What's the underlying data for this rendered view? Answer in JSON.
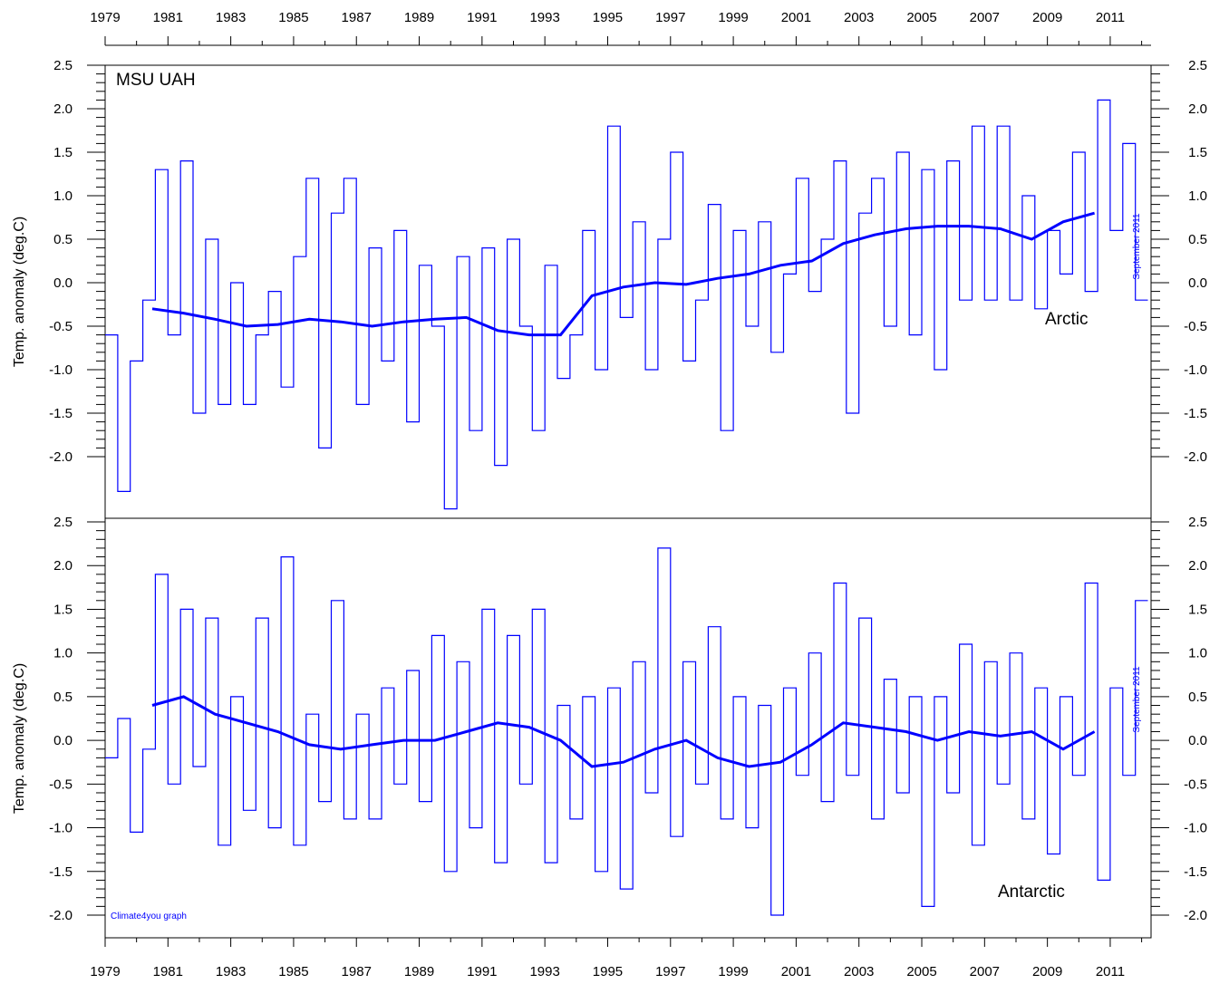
{
  "chart_data": [
    {
      "type": "line",
      "panel": "top",
      "title": "MSU UAH",
      "region_label": "Arctic",
      "side_note": "September 2011",
      "ylabel": "Temp. anomaly (deg.C)",
      "xlim": [
        1979,
        2012.3
      ],
      "ylim": [
        -2.1,
        2.6
      ],
      "yticks": [
        "2.5",
        "2.0",
        "1.5",
        "1.0",
        "0.5",
        "0.0",
        "-0.5",
        "-1.0",
        "-1.5",
        "-2.0"
      ],
      "xticks": [
        "1979",
        "1981",
        "1983",
        "1985",
        "1987",
        "1989",
        "1991",
        "1993",
        "1995",
        "1997",
        "1999",
        "2001",
        "2003",
        "2005",
        "2007",
        "2009",
        "2011"
      ],
      "series": [
        {
          "style": "monthly-step",
          "x": [
            1979.0,
            1979.4,
            1979.8,
            1980.2,
            1980.6,
            1981.0,
            1981.4,
            1981.8,
            1982.2,
            1982.6,
            1983.0,
            1983.4,
            1983.8,
            1984.2,
            1984.6,
            1985.0,
            1985.4,
            1985.8,
            1986.2,
            1986.6,
            1987.0,
            1987.4,
            1987.8,
            1988.2,
            1988.6,
            1989.0,
            1989.4,
            1989.8,
            1990.2,
            1990.6,
            1991.0,
            1991.4,
            1991.8,
            1992.2,
            1992.6,
            1993.0,
            1993.4,
            1993.8,
            1994.2,
            1994.6,
            1995.0,
            1995.4,
            1995.8,
            1996.2,
            1996.6,
            1997.0,
            1997.4,
            1997.8,
            1998.2,
            1998.6,
            1999.0,
            1999.4,
            1999.8,
            2000.2,
            2000.6,
            2001.0,
            2001.4,
            2001.8,
            2002.2,
            2002.6,
            2003.0,
            2003.4,
            2003.8,
            2004.2,
            2004.6,
            2005.0,
            2005.4,
            2005.8,
            2006.2,
            2006.6,
            2007.0,
            2007.4,
            2007.8,
            2008.2,
            2008.6,
            2009.0,
            2009.4,
            2009.8,
            2010.2,
            2010.6,
            2011.0,
            2011.4,
            2011.8
          ],
          "y": [
            -0.6,
            -2.4,
            -0.9,
            -0.2,
            1.3,
            -0.6,
            1.4,
            -1.5,
            0.5,
            -1.4,
            0.0,
            -1.4,
            -0.6,
            -0.1,
            -1.2,
            0.3,
            1.2,
            -1.9,
            0.8,
            1.2,
            -1.4,
            0.4,
            -0.9,
            0.6,
            -1.6,
            0.2,
            -0.5,
            -2.6,
            0.3,
            -1.7,
            0.4,
            -2.1,
            0.5,
            -0.5,
            -1.7,
            0.2,
            -1.1,
            -0.6,
            0.6,
            -1.0,
            1.8,
            -0.4,
            0.7,
            -1.0,
            0.5,
            1.5,
            -0.9,
            -0.2,
            0.9,
            -1.7,
            0.6,
            -0.5,
            0.7,
            -0.8,
            0.1,
            1.2,
            -0.1,
            0.5,
            1.4,
            -1.5,
            0.8,
            1.2,
            -0.5,
            1.5,
            -0.6,
            1.3,
            -1.0,
            1.4,
            -0.2,
            1.8,
            -0.2,
            1.8,
            -0.2,
            1.0,
            -0.3,
            0.6,
            0.1,
            1.5,
            -0.1,
            2.1,
            0.6,
            1.6,
            -0.2
          ]
        },
        {
          "style": "running-mean",
          "x": [
            1980.5,
            1981.5,
            1982.5,
            1983.5,
            1984.5,
            1985.5,
            1986.5,
            1987.5,
            1988.5,
            1989.5,
            1990.5,
            1991.5,
            1992.5,
            1993.5,
            1994.5,
            1995.5,
            1996.5,
            1997.5,
            1998.5,
            1999.5,
            2000.5,
            2001.5,
            2002.5,
            2003.5,
            2004.5,
            2005.5,
            2006.5,
            2007.5,
            2008.5,
            2009.5,
            2010.5
          ],
          "y": [
            -0.3,
            -0.35,
            -0.42,
            -0.5,
            -0.48,
            -0.42,
            -0.45,
            -0.5,
            -0.45,
            -0.42,
            -0.4,
            -0.55,
            -0.6,
            -0.6,
            -0.15,
            -0.05,
            0.0,
            -0.02,
            0.05,
            0.1,
            0.2,
            0.25,
            0.45,
            0.55,
            0.62,
            0.65,
            0.65,
            0.62,
            0.5,
            0.7,
            0.8
          ]
        }
      ]
    },
    {
      "type": "line",
      "panel": "bottom",
      "region_label": "Antarctic",
      "side_note": "September 2011",
      "credit": "Climate4you graph",
      "ylabel": "Temp. anomaly (deg.C)",
      "xlim": [
        1979,
        2012.3
      ],
      "ylim": [
        -2.1,
        2.6
      ],
      "yticks": [
        "2.5",
        "2.0",
        "1.5",
        "1.0",
        "0.5",
        "0.0",
        "-0.5",
        "-1.0",
        "-1.5",
        "-2.0"
      ],
      "xticks": [
        "1979",
        "1981",
        "1983",
        "1985",
        "1987",
        "1989",
        "1991",
        "1993",
        "1995",
        "1997",
        "1999",
        "2001",
        "2003",
        "2005",
        "2007",
        "2009",
        "2011"
      ],
      "series": [
        {
          "style": "monthly-step",
          "x": [
            1979.0,
            1979.4,
            1979.8,
            1980.2,
            1980.6,
            1981.0,
            1981.4,
            1981.8,
            1982.2,
            1982.6,
            1983.0,
            1983.4,
            1983.8,
            1984.2,
            1984.6,
            1985.0,
            1985.4,
            1985.8,
            1986.2,
            1986.6,
            1987.0,
            1987.4,
            1987.8,
            1988.2,
            1988.6,
            1989.0,
            1989.4,
            1989.8,
            1990.2,
            1990.6,
            1991.0,
            1991.4,
            1991.8,
            1992.2,
            1992.6,
            1993.0,
            1993.4,
            1993.8,
            1994.2,
            1994.6,
            1995.0,
            1995.4,
            1995.8,
            1996.2,
            1996.6,
            1997.0,
            1997.4,
            1997.8,
            1998.2,
            1998.6,
            1999.0,
            1999.4,
            1999.8,
            2000.2,
            2000.6,
            2001.0,
            2001.4,
            2001.8,
            2002.2,
            2002.6,
            2003.0,
            2003.4,
            2003.8,
            2004.2,
            2004.6,
            2005.0,
            2005.4,
            2005.8,
            2006.2,
            2006.6,
            2007.0,
            2007.4,
            2007.8,
            2008.2,
            2008.6,
            2009.0,
            2009.4,
            2009.8,
            2010.2,
            2010.6,
            2011.0,
            2011.4,
            2011.8
          ],
          "y": [
            -0.2,
            0.25,
            -1.05,
            -0.1,
            1.9,
            -0.5,
            1.5,
            -0.3,
            1.4,
            -1.2,
            0.5,
            -0.8,
            1.4,
            -1.0,
            2.1,
            -1.2,
            0.3,
            -0.7,
            1.6,
            -0.9,
            0.3,
            -0.9,
            0.6,
            -0.5,
            0.8,
            -0.7,
            1.2,
            -1.5,
            0.9,
            -1.0,
            1.5,
            -1.4,
            1.2,
            -0.5,
            1.5,
            -1.4,
            0.4,
            -0.9,
            0.5,
            -1.5,
            0.6,
            -1.7,
            0.9,
            -0.6,
            2.2,
            -1.1,
            0.9,
            -0.5,
            1.3,
            -0.9,
            0.5,
            -1.0,
            0.4,
            -2.0,
            0.6,
            -0.4,
            1.0,
            -0.7,
            1.8,
            -0.4,
            1.4,
            -0.9,
            0.7,
            -0.6,
            0.5,
            -1.9,
            0.5,
            -0.6,
            1.1,
            -1.2,
            0.9,
            -0.5,
            1.0,
            -0.9,
            0.6,
            -1.3,
            0.5,
            -0.4,
            1.8,
            -1.6,
            0.6,
            -0.4,
            1.6
          ]
        },
        {
          "style": "running-mean",
          "x": [
            1980.5,
            1981.5,
            1982.5,
            1983.5,
            1984.5,
            1985.5,
            1986.5,
            1987.5,
            1988.5,
            1989.5,
            1990.5,
            1991.5,
            1992.5,
            1993.5,
            1994.5,
            1995.5,
            1996.5,
            1997.5,
            1998.5,
            1999.5,
            2000.5,
            2001.5,
            2002.5,
            2003.5,
            2004.5,
            2005.5,
            2006.5,
            2007.5,
            2008.5,
            2009.5,
            2010.5
          ],
          "y": [
            0.4,
            0.5,
            0.3,
            0.2,
            0.1,
            -0.05,
            -0.1,
            -0.05,
            0.0,
            0.0,
            0.1,
            0.2,
            0.15,
            0.0,
            -0.3,
            -0.25,
            -0.1,
            0.0,
            -0.2,
            -0.3,
            -0.25,
            -0.05,
            0.2,
            0.15,
            0.1,
            0.0,
            0.1,
            0.05,
            0.1,
            -0.1,
            0.1
          ]
        }
      ]
    }
  ]
}
